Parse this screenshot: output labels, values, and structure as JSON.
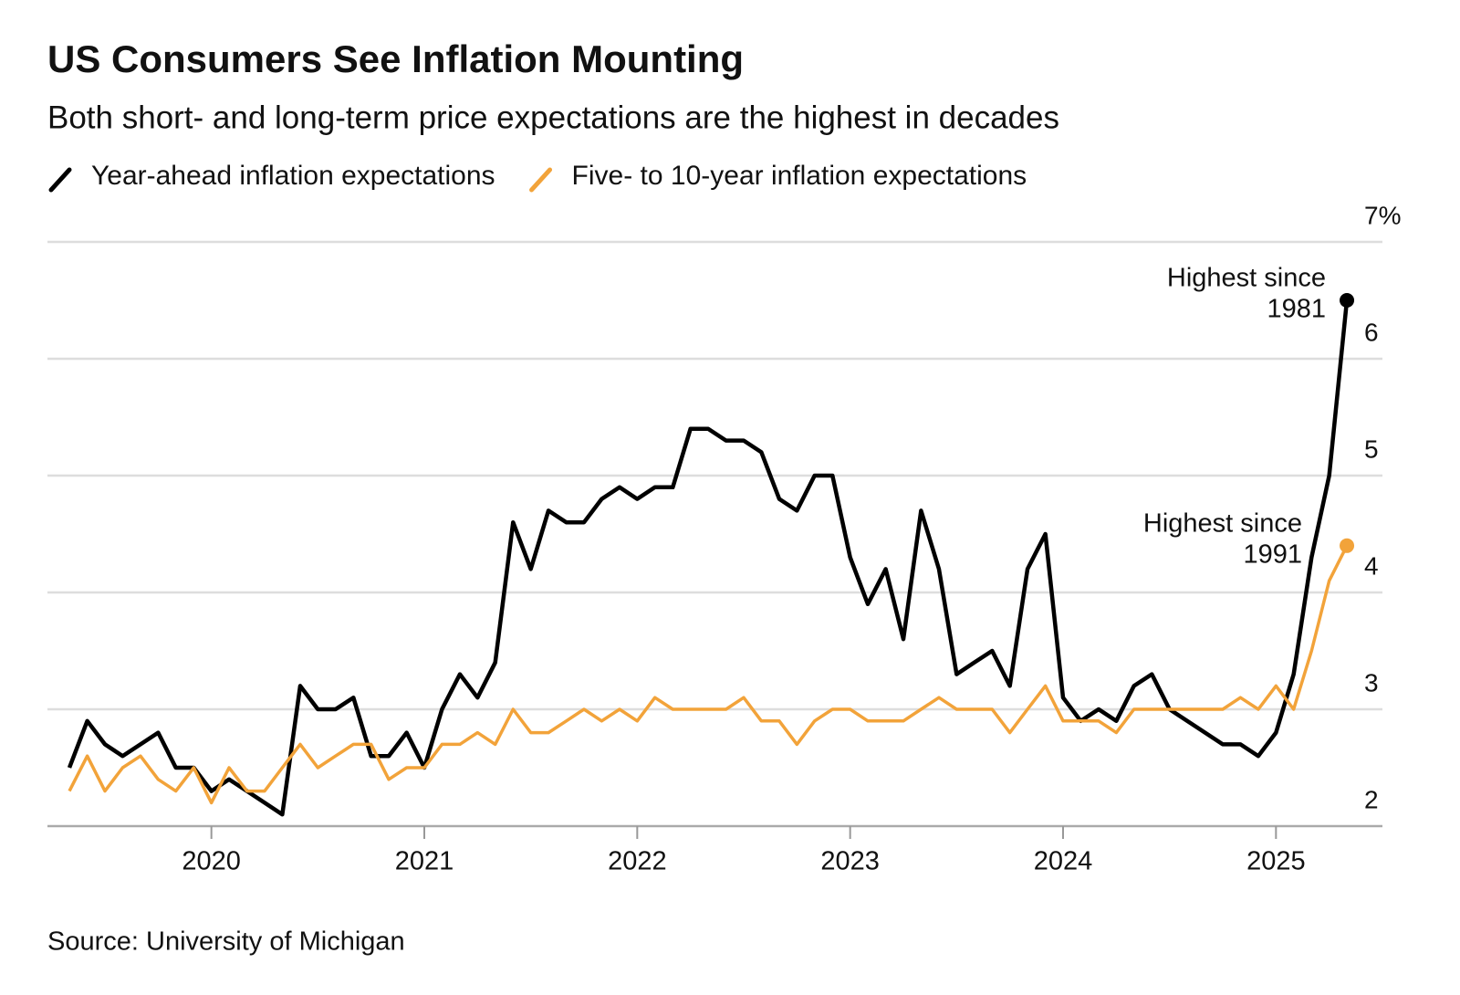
{
  "chart_data": {
    "type": "line",
    "title": "US Consumers See Inflation Mounting",
    "subtitle": "Both short- and long-term price expectations are the highest in decades",
    "source": "Source: University of Michigan",
    "x": [
      2019.333,
      2019.417,
      2019.5,
      2019.583,
      2019.667,
      2019.75,
      2019.833,
      2019.917,
      2020,
      2020.083,
      2020.167,
      2020.25,
      2020.333,
      2020.417,
      2020.5,
      2020.583,
      2020.667,
      2020.75,
      2020.833,
      2020.917,
      2021,
      2021.083,
      2021.167,
      2021.25,
      2021.333,
      2021.417,
      2021.5,
      2021.583,
      2021.667,
      2021.75,
      2021.833,
      2021.917,
      2022,
      2022.083,
      2022.167,
      2022.25,
      2022.333,
      2022.417,
      2022.5,
      2022.583,
      2022.667,
      2022.75,
      2022.833,
      2022.917,
      2023,
      2023.083,
      2023.167,
      2023.25,
      2023.333,
      2023.417,
      2023.5,
      2023.583,
      2023.667,
      2023.75,
      2023.833,
      2023.917,
      2024,
      2024.083,
      2024.167,
      2024.25,
      2024.333,
      2024.417,
      2024.5,
      2024.583,
      2024.667,
      2024.75,
      2024.833,
      2024.917,
      2025,
      2025.083,
      2025.167,
      2025.25,
      2025.333
    ],
    "series": [
      {
        "name": "Year-ahead inflation expectations",
        "color": "#000000",
        "values": [
          2.5,
          2.9,
          2.7,
          2.6,
          2.7,
          2.8,
          2.5,
          2.5,
          2.3,
          2.4,
          2.3,
          2.2,
          2.1,
          3.2,
          3.0,
          3.0,
          3.1,
          2.6,
          2.6,
          2.8,
          2.5,
          3.0,
          3.3,
          3.1,
          3.4,
          4.6,
          4.2,
          4.7,
          4.6,
          4.6,
          4.8,
          4.9,
          4.8,
          4.9,
          4.9,
          5.4,
          5.4,
          5.3,
          5.3,
          5.2,
          4.8,
          4.7,
          5.0,
          5.0,
          4.3,
          3.9,
          4.2,
          3.6,
          4.7,
          4.2,
          3.3,
          3.4,
          3.5,
          3.2,
          4.2,
          4.5,
          3.1,
          2.9,
          3.0,
          2.9,
          3.2,
          3.3,
          3.0,
          2.9,
          2.8,
          2.7,
          2.7,
          2.6,
          2.8,
          3.3,
          4.3,
          5.0,
          6.5
        ]
      },
      {
        "name": "Five- to 10-year inflation expectations",
        "color": "#f2a33a",
        "values": [
          2.3,
          2.6,
          2.3,
          2.5,
          2.6,
          2.4,
          2.3,
          2.5,
          2.2,
          2.5,
          2.3,
          2.3,
          2.5,
          2.7,
          2.5,
          2.6,
          2.7,
          2.7,
          2.4,
          2.5,
          2.5,
          2.7,
          2.7,
          2.8,
          2.7,
          3.0,
          2.8,
          2.8,
          2.9,
          3.0,
          2.9,
          3.0,
          2.9,
          3.1,
          3.0,
          3.0,
          3.0,
          3.0,
          3.1,
          2.9,
          2.9,
          2.7,
          2.9,
          3.0,
          3.0,
          2.9,
          2.9,
          2.9,
          3.0,
          3.1,
          3.0,
          3.0,
          3.0,
          2.8,
          3.0,
          3.2,
          2.9,
          2.9,
          2.9,
          2.8,
          3.0,
          3.0,
          3.0,
          3.0,
          3.0,
          3.0,
          3.1,
          3.0,
          3.2,
          3.0,
          3.5,
          4.1,
          4.4
        ]
      }
    ],
    "annotations": [
      {
        "lines": [
          "Highest since",
          "1981"
        ]
      },
      {
        "lines": [
          "Highest since",
          "1991"
        ]
      }
    ],
    "xlim": [
      2019.23,
      2025.5
    ],
    "xticks": [
      2020,
      2021,
      2022,
      2023,
      2024,
      2025
    ],
    "ylim": [
      2,
      7
    ],
    "yticks": [
      2,
      3,
      4,
      5,
      6,
      {
        "value": 7,
        "label": "7%"
      }
    ],
    "grid": true
  }
}
